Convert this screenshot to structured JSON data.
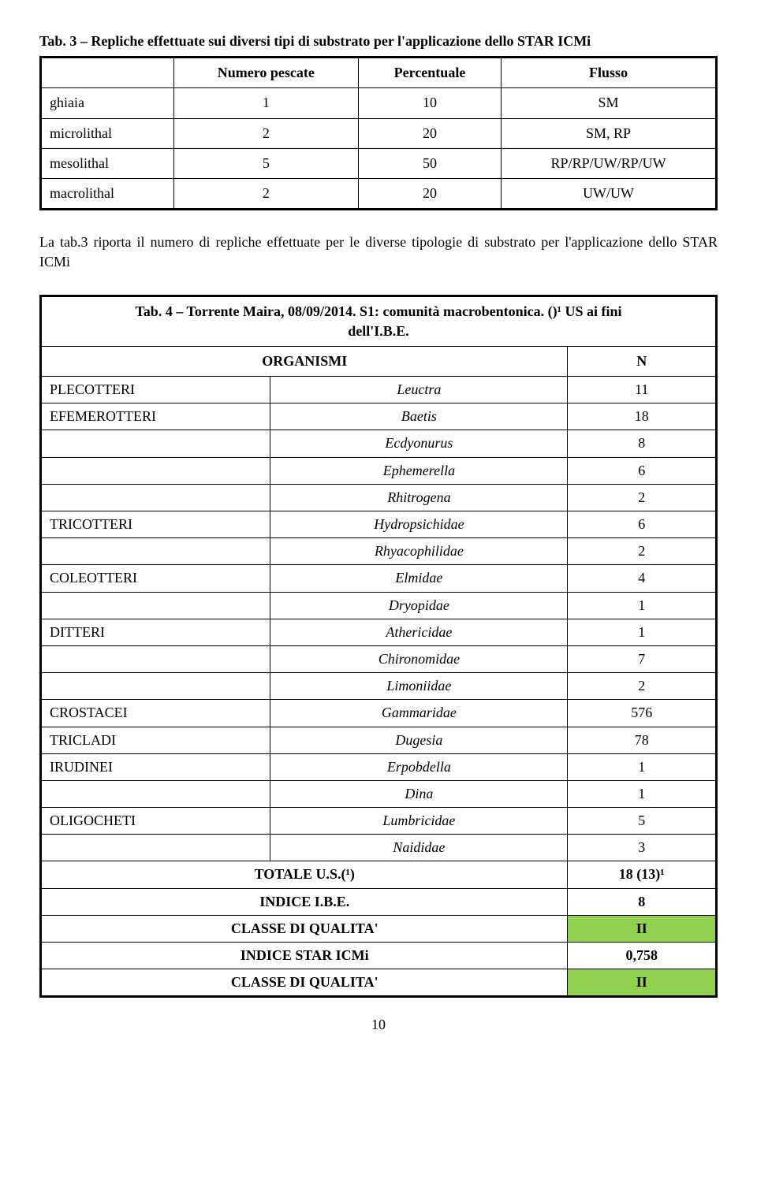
{
  "tab3": {
    "title": "Tab. 3 – Repliche effettuate sui diversi tipi di substrato per l'applicazione dello STAR ICMi",
    "headers": {
      "c0": "",
      "c1": "Numero pescate",
      "c2": "Percentuale",
      "c3": "Flusso"
    },
    "rows": [
      {
        "label": "ghiaia",
        "n": "1",
        "pct": "10",
        "flow": "SM"
      },
      {
        "label": "microlithal",
        "n": "2",
        "pct": "20",
        "flow": "SM, RP"
      },
      {
        "label": "mesolithal",
        "n": "5",
        "pct": "50",
        "flow": "RP/RP/UW/RP/UW"
      },
      {
        "label": "macrolithal",
        "n": "2",
        "pct": "20",
        "flow": "UW/UW"
      }
    ]
  },
  "paragraph": "La tab.3 riporta il numero di repliche effettuate per le diverse tipologie di substrato per l'applicazione dello STAR ICMi",
  "tab4": {
    "title_line1": "Tab. 4 – Torrente Maira, 08/09/2014. S1: comunità macrobentonica. ()¹ US ai fini",
    "title_line2": "dell'I.B.E.",
    "header_org": "ORGANISMI",
    "header_n": "N",
    "rows": [
      {
        "group": "PLECOTTERI",
        "species": "Leuctra",
        "n": "11"
      },
      {
        "group": "EFEMEROTTERI",
        "species": "Baetis",
        "n": "18"
      },
      {
        "group": "",
        "species": "Ecdyonurus",
        "n": "8"
      },
      {
        "group": "",
        "species": "Ephemerella",
        "n": "6"
      },
      {
        "group": "",
        "species": "Rhitrogena",
        "n": "2"
      },
      {
        "group": "TRICOTTERI",
        "species": "Hydropsichidae",
        "n": "6"
      },
      {
        "group": "",
        "species": "Rhyacophilidae",
        "n": "2"
      },
      {
        "group": "COLEOTTERI",
        "species": "Elmidae",
        "n": "4"
      },
      {
        "group": "",
        "species": "Dryopidae",
        "n": "1"
      },
      {
        "group": "DITTERI",
        "species": "Athericidae",
        "n": "1"
      },
      {
        "group": "",
        "species": "Chironomidae",
        "n": "7"
      },
      {
        "group": "",
        "species": "Limoniidae",
        "n": "2"
      },
      {
        "group": "CROSTACEI",
        "species": "Gammaridae",
        "n": "576"
      },
      {
        "group": "TRICLADI",
        "species": "Dugesia",
        "n": "78"
      },
      {
        "group": "IRUDINEI",
        "species": "Erpobdella",
        "n": "1"
      },
      {
        "group": "",
        "species": "Dina",
        "n": "1"
      },
      {
        "group": "OLIGOCHETI",
        "species": "Lumbricidae",
        "n": "5"
      },
      {
        "group": "",
        "species": "Naididae",
        "n": "3"
      }
    ],
    "footer": [
      {
        "label": "TOTALE U.S.(¹)",
        "val": "18 (13)¹",
        "green": false
      },
      {
        "label": "INDICE I.B.E.",
        "val": "8",
        "green": false
      },
      {
        "label": "CLASSE DI QUALITA'",
        "val": "II",
        "green": true
      },
      {
        "label": "INDICE STAR ICMi",
        "val": "0,758",
        "green": false
      },
      {
        "label": "CLASSE DI QUALITA'",
        "val": "II",
        "green": true
      }
    ]
  },
  "pagenum": "10"
}
